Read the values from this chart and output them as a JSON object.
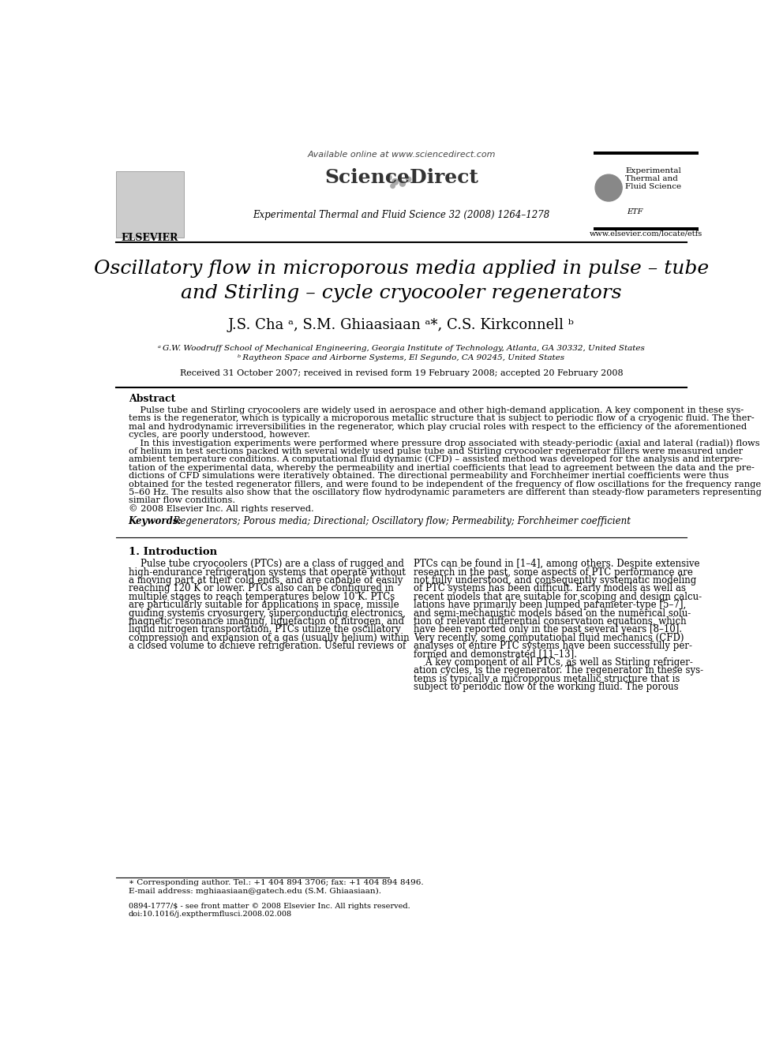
{
  "bg_color": "#ffffff",
  "title_line1": "Oscillatory flow in microporous media applied in pulse – tube",
  "title_line2": "and Stirling – cycle cryocooler regenerators",
  "authors": "J.S. Cha ᵃ, S.M. Ghiaasiaan ᵃ*, C.S. Kirkconnell ᵇ",
  "affil_a": "ᵃ G.W. Woodruff School of Mechanical Engineering, Georgia Institute of Technology, Atlanta, GA 30332, United States",
  "affil_b": "ᵇ Raytheon Space and Airborne Systems, El Segundo, CA 90245, United States",
  "received": "Received 31 October 2007; received in revised form 19 February 2008; accepted 20 February 2008",
  "journal_line": "Experimental Thermal and Fluid Science 32 (2008) 1264–1278",
  "available_online": "Available online at www.sciencedirect.com",
  "website": "www.elsevier.com/locate/etfs",
  "elsevier_text": "ELSEVIER",
  "abstract_title": "Abstract",
  "keywords_label": "Keywords:",
  "keywords_text": "  Regenerators; Porous media; Directional; Oscillatory flow; Permeability; Forchheimer coefficient",
  "section1_title": "1. Introduction",
  "footnote_line1": "∗ Corresponding author. Tel.: +1 404 894 3706; fax: +1 404 894 8496.",
  "footnote_line2": "E-mail address: mghiaasiaan@gatech.edu (S.M. Ghiaasiaan).",
  "issn_line": "0894-1777/$ - see front matter © 2008 Elsevier Inc. All rights reserved.",
  "doi_line": "doi:10.1016/j.expthermflusci.2008.02.008"
}
